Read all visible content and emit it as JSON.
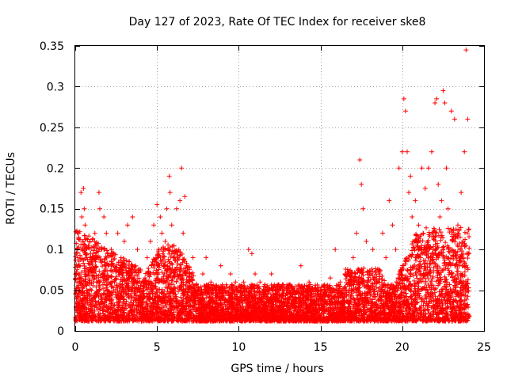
{
  "chart_data": {
    "type": "scatter",
    "title": "Day 127 of 2023, Rate Of TEC Index for receiver ske8",
    "xlabel": "GPS time / hours",
    "ylabel": "ROTI / TECUs",
    "xlim": [
      0,
      25
    ],
    "ylim": [
      0,
      0.35
    ],
    "xticks": [
      "0",
      "5",
      "10",
      "15",
      "20",
      "25"
    ],
    "yticks": [
      "0",
      "0.05",
      "0.1",
      "0.15",
      "0.2",
      "0.25",
      "0.3",
      "0.35"
    ],
    "grid": true,
    "marker": "plus",
    "color": "#ff0000",
    "series": [
      {
        "name": "ROTI",
        "points": [
          [
            0.05,
            0.03
          ],
          [
            0.1,
            0.06
          ],
          [
            0.15,
            0.09
          ],
          [
            0.2,
            0.12
          ],
          [
            0.25,
            0.05
          ],
          [
            0.3,
            0.08
          ],
          [
            0.35,
            0.17
          ],
          [
            0.4,
            0.14
          ],
          [
            0.45,
            0.1
          ],
          [
            0.5,
            0.175
          ],
          [
            0.55,
            0.15
          ],
          [
            0.6,
            0.13
          ],
          [
            0.7,
            0.09
          ],
          [
            0.8,
            0.07
          ],
          [
            0.9,
            0.11
          ],
          [
            1.0,
            0.05
          ],
          [
            1.1,
            0.09
          ],
          [
            1.2,
            0.12
          ],
          [
            1.3,
            0.06
          ],
          [
            1.45,
            0.17
          ],
          [
            1.5,
            0.15
          ],
          [
            1.6,
            0.1
          ],
          [
            1.75,
            0.14
          ],
          [
            1.9,
            0.12
          ],
          [
            2.0,
            0.08
          ],
          [
            2.2,
            0.1
          ],
          [
            2.4,
            0.06
          ],
          [
            2.6,
            0.12
          ],
          [
            2.8,
            0.09
          ],
          [
            3.0,
            0.11
          ],
          [
            3.2,
            0.13
          ],
          [
            3.4,
            0.07
          ],
          [
            3.5,
            0.14
          ],
          [
            3.6,
            0.06
          ],
          [
            3.7,
            0.08
          ],
          [
            3.8,
            0.1
          ],
          [
            3.9,
            0.05
          ],
          [
            4.0,
            0.03
          ],
          [
            4.2,
            0.06
          ],
          [
            4.4,
            0.09
          ],
          [
            4.6,
            0.11
          ],
          [
            4.8,
            0.13
          ],
          [
            5.0,
            0.155
          ],
          [
            5.1,
            0.1
          ],
          [
            5.2,
            0.14
          ],
          [
            5.3,
            0.12
          ],
          [
            5.4,
            0.08
          ],
          [
            5.5,
            0.11
          ],
          [
            5.6,
            0.15
          ],
          [
            5.75,
            0.19
          ],
          [
            5.8,
            0.17
          ],
          [
            5.9,
            0.13
          ],
          [
            6.0,
            0.09
          ],
          [
            6.2,
            0.15
          ],
          [
            6.4,
            0.16
          ],
          [
            6.5,
            0.2
          ],
          [
            6.6,
            0.12
          ],
          [
            6.7,
            0.165
          ],
          [
            6.8,
            0.08
          ],
          [
            7.0,
            0.06
          ],
          [
            7.2,
            0.09
          ],
          [
            7.5,
            0.05
          ],
          [
            7.8,
            0.07
          ],
          [
            8.0,
            0.09
          ],
          [
            8.3,
            0.06
          ],
          [
            8.6,
            0.05
          ],
          [
            8.9,
            0.08
          ],
          [
            9.2,
            0.05
          ],
          [
            9.5,
            0.07
          ],
          [
            9.8,
            0.06
          ],
          [
            10.0,
            0.04
          ],
          [
            10.3,
            0.06
          ],
          [
            10.6,
            0.1
          ],
          [
            10.8,
            0.095
          ],
          [
            11.0,
            0.07
          ],
          [
            11.3,
            0.06
          ],
          [
            11.6,
            0.05
          ],
          [
            12.0,
            0.07
          ],
          [
            12.3,
            0.05
          ],
          [
            12.6,
            0.045
          ],
          [
            13.0,
            0.04
          ],
          [
            13.4,
            0.05
          ],
          [
            13.8,
            0.08
          ],
          [
            14.0,
            0.055
          ],
          [
            14.3,
            0.06
          ],
          [
            14.6,
            0.05
          ],
          [
            15.0,
            0.045
          ],
          [
            15.3,
            0.05
          ],
          [
            15.6,
            0.065
          ],
          [
            15.9,
            0.1
          ],
          [
            16.2,
            0.06
          ],
          [
            16.5,
            0.07
          ],
          [
            16.8,
            0.06
          ],
          [
            17.0,
            0.09
          ],
          [
            17.2,
            0.12
          ],
          [
            17.4,
            0.21
          ],
          [
            17.5,
            0.18
          ],
          [
            17.6,
            0.15
          ],
          [
            17.8,
            0.11
          ],
          [
            18.0,
            0.07
          ],
          [
            18.2,
            0.1
          ],
          [
            18.5,
            0.06
          ],
          [
            18.8,
            0.12
          ],
          [
            19.0,
            0.09
          ],
          [
            19.2,
            0.16
          ],
          [
            19.4,
            0.13
          ],
          [
            19.6,
            0.1
          ],
          [
            19.8,
            0.2
          ],
          [
            20.0,
            0.22
          ],
          [
            20.1,
            0.285
          ],
          [
            20.2,
            0.27
          ],
          [
            20.3,
            0.22
          ],
          [
            20.4,
            0.17
          ],
          [
            20.5,
            0.19
          ],
          [
            20.6,
            0.14
          ],
          [
            20.8,
            0.16
          ],
          [
            21.0,
            0.13
          ],
          [
            21.2,
            0.2
          ],
          [
            21.4,
            0.175
          ],
          [
            21.6,
            0.2
          ],
          [
            21.8,
            0.22
          ],
          [
            22.0,
            0.28
          ],
          [
            22.1,
            0.285
          ],
          [
            22.2,
            0.18
          ],
          [
            22.3,
            0.14
          ],
          [
            22.4,
            0.16
          ],
          [
            22.5,
            0.295
          ],
          [
            22.6,
            0.28
          ],
          [
            22.7,
            0.2
          ],
          [
            22.8,
            0.15
          ],
          [
            23.0,
            0.27
          ],
          [
            23.2,
            0.26
          ],
          [
            23.4,
            0.13
          ],
          [
            23.6,
            0.17
          ],
          [
            23.8,
            0.22
          ],
          [
            23.9,
            0.345
          ],
          [
            24.0,
            0.26
          ]
        ]
      }
    ]
  }
}
